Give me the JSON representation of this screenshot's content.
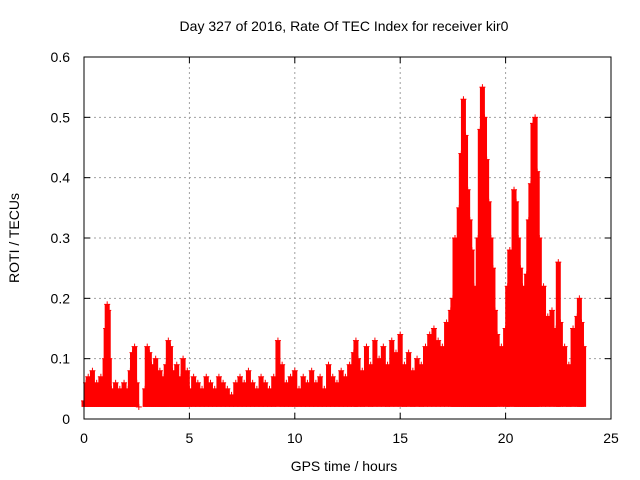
{
  "chart_data": {
    "type": "scatter",
    "title": "Day 327 of 2016, Rate Of TEC Index for receiver kir0",
    "xlabel": "GPS time / hours",
    "ylabel": "ROTI / TECUs",
    "xlim": [
      0,
      25
    ],
    "ylim": [
      0,
      0.6
    ],
    "xticks": [
      0,
      5,
      10,
      15,
      20,
      25
    ],
    "yticks": [
      0,
      0.1,
      0.2,
      0.3,
      0.4,
      0.5,
      0.6
    ],
    "xtick_labels": [
      "0",
      "5",
      "10",
      "15",
      "20",
      "25"
    ],
    "ytick_labels": [
      "0",
      "0.1",
      "0.2",
      "0.3",
      "0.4",
      "0.5",
      "0.6"
    ],
    "grid": true,
    "marker": "+",
    "color": "#ff0000",
    "series": [
      {
        "name": "ROTI",
        "points": [
          [
            0.0,
            0.03
          ],
          [
            0.1,
            0.06
          ],
          [
            0.2,
            0.07
          ],
          [
            0.3,
            0.05
          ],
          [
            0.4,
            0.08
          ],
          [
            0.5,
            0.04
          ],
          [
            0.6,
            0.06
          ],
          [
            0.7,
            0.05
          ],
          [
            0.8,
            0.07
          ],
          [
            0.9,
            0.04
          ],
          [
            1.0,
            0.1
          ],
          [
            1.05,
            0.15
          ],
          [
            1.1,
            0.19
          ],
          [
            1.15,
            0.18
          ],
          [
            1.2,
            0.1
          ],
          [
            1.3,
            0.05
          ],
          [
            1.4,
            0.04
          ],
          [
            1.5,
            0.06
          ],
          [
            1.6,
            0.03
          ],
          [
            1.7,
            0.05
          ],
          [
            1.8,
            0.04
          ],
          [
            1.9,
            0.06
          ],
          [
            2.0,
            0.03
          ],
          [
            2.1,
            0.05
          ],
          [
            2.2,
            0.08
          ],
          [
            2.3,
            0.11
          ],
          [
            2.4,
            0.12
          ],
          [
            2.5,
            0.06
          ],
          [
            2.6,
            0.02
          ],
          [
            2.9,
            0.05
          ],
          [
            3.0,
            0.12
          ],
          [
            3.1,
            0.11
          ],
          [
            3.2,
            0.09
          ],
          [
            3.3,
            0.07
          ],
          [
            3.4,
            0.1
          ],
          [
            3.5,
            0.06
          ],
          [
            3.6,
            0.08
          ],
          [
            3.7,
            0.05
          ],
          [
            3.8,
            0.07
          ],
          [
            3.9,
            0.09
          ],
          [
            4.0,
            0.13
          ],
          [
            4.1,
            0.12
          ],
          [
            4.2,
            0.08
          ],
          [
            4.3,
            0.06
          ],
          [
            4.4,
            0.09
          ],
          [
            4.5,
            0.05
          ],
          [
            4.6,
            0.07
          ],
          [
            4.7,
            0.1
          ],
          [
            4.8,
            0.06
          ],
          [
            4.9,
            0.08
          ],
          [
            5.0,
            0.05
          ],
          [
            5.2,
            0.07
          ],
          [
            5.4,
            0.06
          ],
          [
            5.6,
            0.05
          ],
          [
            5.8,
            0.07
          ],
          [
            6.0,
            0.06
          ],
          [
            6.2,
            0.05
          ],
          [
            6.4,
            0.07
          ],
          [
            6.6,
            0.06
          ],
          [
            6.8,
            0.05
          ],
          [
            7.0,
            0.04
          ],
          [
            7.2,
            0.06
          ],
          [
            7.4,
            0.07
          ],
          [
            7.6,
            0.06
          ],
          [
            7.8,
            0.08
          ],
          [
            8.0,
            0.06
          ],
          [
            8.2,
            0.05
          ],
          [
            8.4,
            0.07
          ],
          [
            8.6,
            0.06
          ],
          [
            8.8,
            0.05
          ],
          [
            9.0,
            0.07
          ],
          [
            9.2,
            0.13
          ],
          [
            9.4,
            0.09
          ],
          [
            9.6,
            0.06
          ],
          [
            9.8,
            0.07
          ],
          [
            10.0,
            0.08
          ],
          [
            10.2,
            0.05
          ],
          [
            10.4,
            0.07
          ],
          [
            10.6,
            0.06
          ],
          [
            10.8,
            0.08
          ],
          [
            11.0,
            0.06
          ],
          [
            11.2,
            0.07
          ],
          [
            11.4,
            0.05
          ],
          [
            11.6,
            0.09
          ],
          [
            11.8,
            0.07
          ],
          [
            12.0,
            0.06
          ],
          [
            12.2,
            0.08
          ],
          [
            12.4,
            0.07
          ],
          [
            12.6,
            0.09
          ],
          [
            12.8,
            0.11
          ],
          [
            12.9,
            0.13
          ],
          [
            13.0,
            0.1
          ],
          [
            13.2,
            0.08
          ],
          [
            13.4,
            0.12
          ],
          [
            13.6,
            0.09
          ],
          [
            13.8,
            0.13
          ],
          [
            14.0,
            0.1
          ],
          [
            14.2,
            0.12
          ],
          [
            14.4,
            0.09
          ],
          [
            14.6,
            0.13
          ],
          [
            14.8,
            0.11
          ],
          [
            15.0,
            0.14
          ],
          [
            15.2,
            0.09
          ],
          [
            15.4,
            0.11
          ],
          [
            15.6,
            0.08
          ],
          [
            15.8,
            0.1
          ],
          [
            16.0,
            0.09
          ],
          [
            16.2,
            0.12
          ],
          [
            16.4,
            0.14
          ],
          [
            16.6,
            0.15
          ],
          [
            16.8,
            0.13
          ],
          [
            17.0,
            0.12
          ],
          [
            17.2,
            0.16
          ],
          [
            17.4,
            0.18
          ],
          [
            17.5,
            0.2
          ],
          [
            17.6,
            0.3
          ],
          [
            17.7,
            0.28
          ],
          [
            17.8,
            0.35
          ],
          [
            17.9,
            0.44
          ],
          [
            18.0,
            0.53
          ],
          [
            18.1,
            0.47
          ],
          [
            18.2,
            0.38
          ],
          [
            18.3,
            0.33
          ],
          [
            18.4,
            0.28
          ],
          [
            18.5,
            0.22
          ],
          [
            18.6,
            0.18
          ],
          [
            18.7,
            0.3
          ],
          [
            18.8,
            0.48
          ],
          [
            18.9,
            0.55
          ],
          [
            19.0,
            0.5
          ],
          [
            19.1,
            0.43
          ],
          [
            19.2,
            0.36
          ],
          [
            19.3,
            0.3
          ],
          [
            19.4,
            0.25
          ],
          [
            19.5,
            0.18
          ],
          [
            19.6,
            0.14
          ],
          [
            19.8,
            0.12
          ],
          [
            20.0,
            0.15
          ],
          [
            20.1,
            0.22
          ],
          [
            20.2,
            0.28
          ],
          [
            20.4,
            0.38
          ],
          [
            20.5,
            0.36
          ],
          [
            20.6,
            0.3
          ],
          [
            20.7,
            0.25
          ],
          [
            20.8,
            0.22
          ],
          [
            20.9,
            0.19
          ],
          [
            21.0,
            0.24
          ],
          [
            21.1,
            0.33
          ],
          [
            21.2,
            0.39
          ],
          [
            21.3,
            0.49
          ],
          [
            21.4,
            0.5
          ],
          [
            21.5,
            0.41
          ],
          [
            21.6,
            0.3
          ],
          [
            21.8,
            0.22
          ],
          [
            22.0,
            0.17
          ],
          [
            22.2,
            0.18
          ],
          [
            22.4,
            0.15
          ],
          [
            22.5,
            0.26
          ],
          [
            22.6,
            0.16
          ],
          [
            22.8,
            0.12
          ],
          [
            23.0,
            0.09
          ],
          [
            23.2,
            0.15
          ],
          [
            23.4,
            0.17
          ],
          [
            23.5,
            0.2
          ],
          [
            23.6,
            0.16
          ],
          [
            23.7,
            0.12
          ]
        ]
      }
    ]
  }
}
